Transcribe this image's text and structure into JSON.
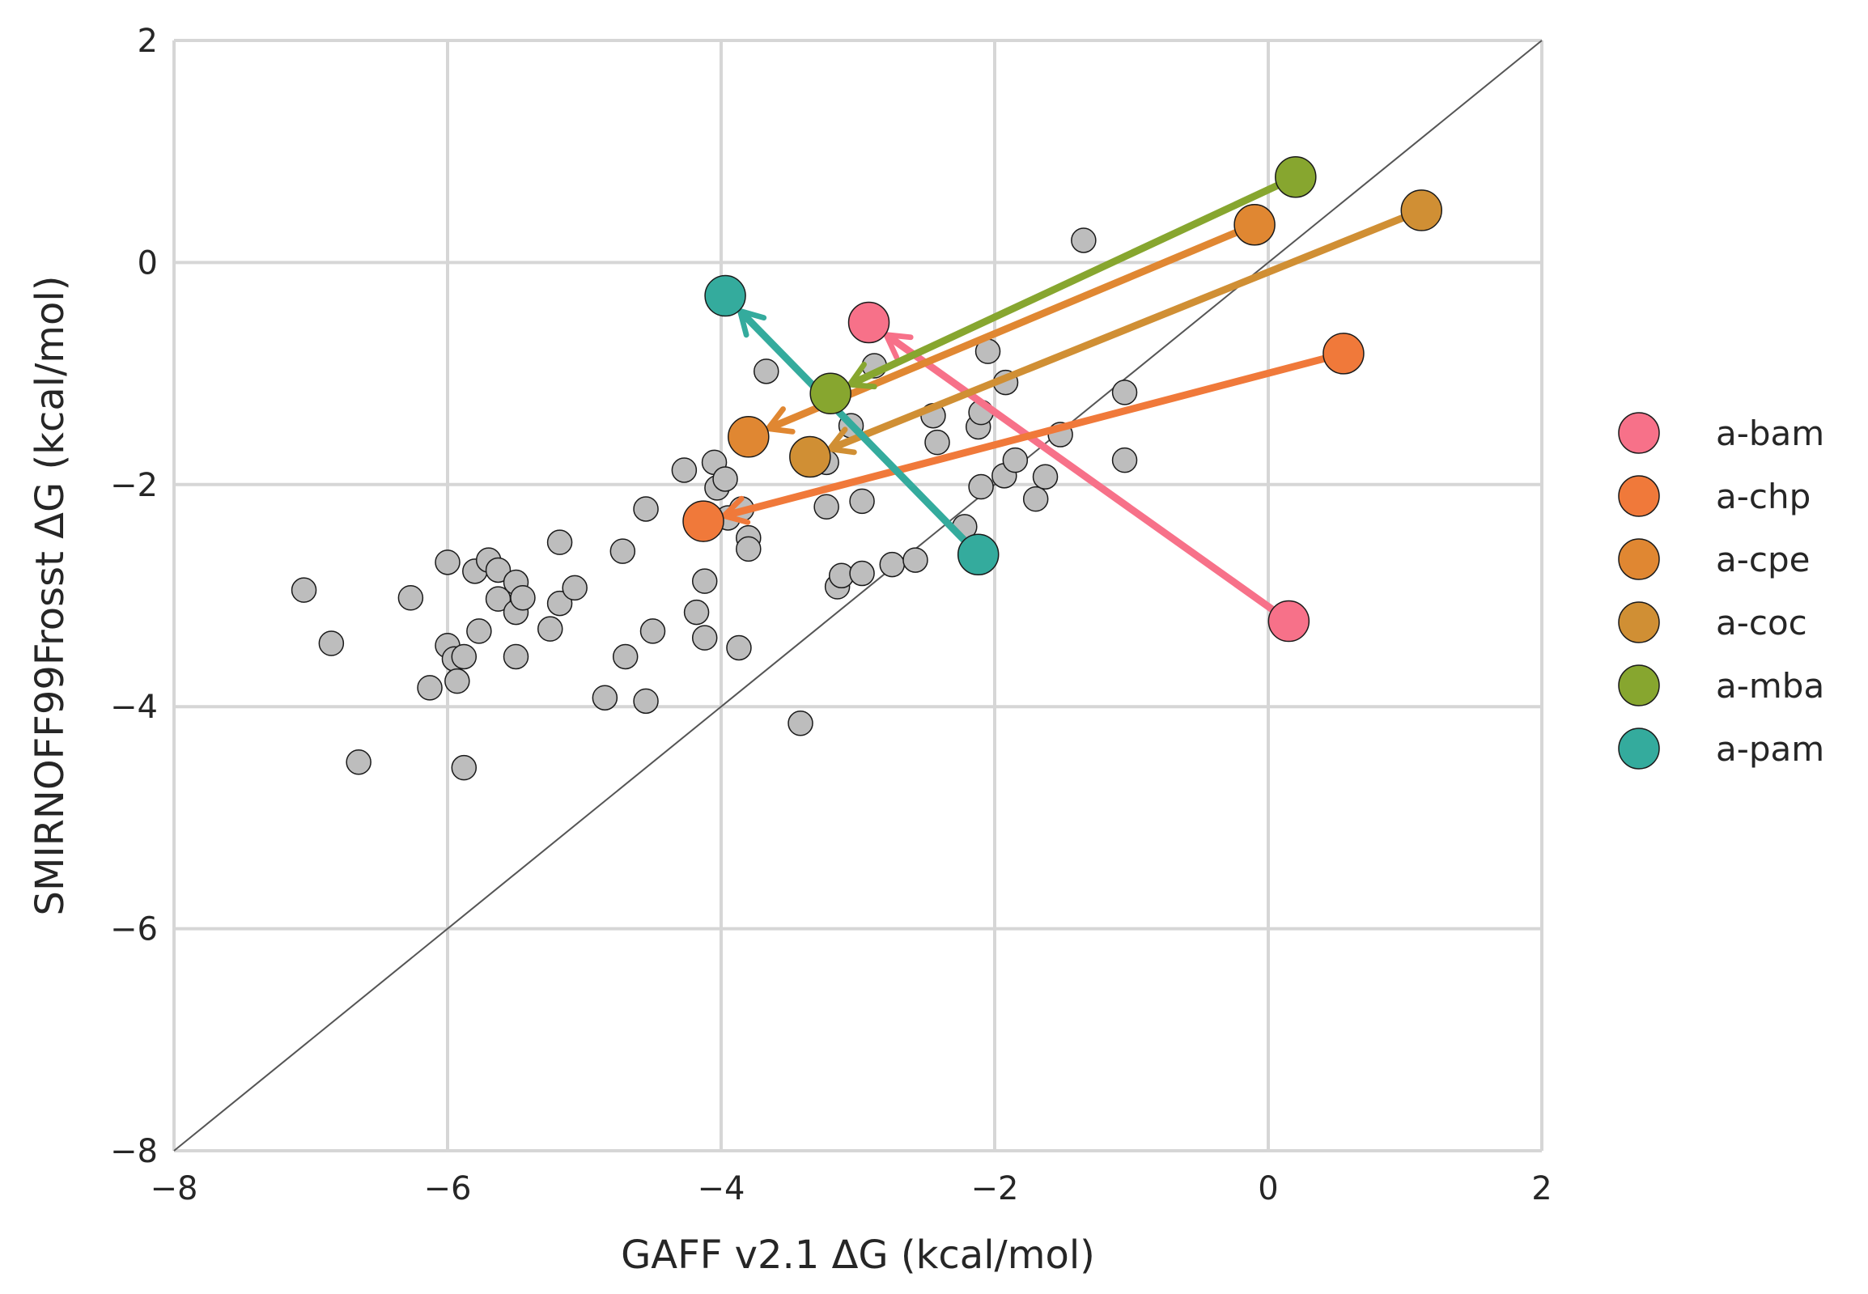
{
  "chart_data": {
    "type": "scatter",
    "title": "",
    "xlabel": "GAFF v2.1 ΔG (kcal/mol)",
    "ylabel": "SMIRNOFF99Frosst ΔG (kcal/mol)",
    "xlim": [
      -8,
      2
    ],
    "ylim": [
      -8,
      2
    ],
    "xticks": [
      -8,
      -6,
      -4,
      -2,
      0,
      2
    ],
    "yticks": [
      -8,
      -6,
      -4,
      -2,
      0,
      2
    ],
    "xtick_labels": [
      "−8",
      "−6",
      "−4",
      "−2",
      "0",
      "2"
    ],
    "ytick_labels": [
      "−8",
      "−6",
      "−4",
      "−2",
      "0",
      "2"
    ],
    "grid": true,
    "identity_line": true,
    "legend_position": "right",
    "background_points": [
      [
        -7.05,
        -2.95
      ],
      [
        -6.85,
        -3.43
      ],
      [
        -6.65,
        -4.5
      ],
      [
        -6.27,
        -3.02
      ],
      [
        -6.13,
        -3.83
      ],
      [
        -6.0,
        -2.7
      ],
      [
        -6.0,
        -3.45
      ],
      [
        -5.95,
        -3.57
      ],
      [
        -5.93,
        -3.77
      ],
      [
        -5.88,
        -3.55
      ],
      [
        -5.88,
        -4.55
      ],
      [
        -5.8,
        -2.78
      ],
      [
        -5.77,
        -3.32
      ],
      [
        -5.7,
        -2.68
      ],
      [
        -5.63,
        -2.77
      ],
      [
        -5.63,
        -3.03
      ],
      [
        -5.5,
        -2.88
      ],
      [
        -5.5,
        -3.15
      ],
      [
        -5.5,
        -3.55
      ],
      [
        -5.45,
        -3.02
      ],
      [
        -5.25,
        -3.3
      ],
      [
        -5.18,
        -2.52
      ],
      [
        -5.18,
        -3.07
      ],
      [
        -5.07,
        -2.93
      ],
      [
        -4.85,
        -3.92
      ],
      [
        -4.72,
        -2.6
      ],
      [
        -4.7,
        -3.55
      ],
      [
        -4.55,
        -2.22
      ],
      [
        -4.55,
        -3.95
      ],
      [
        -4.5,
        -3.32
      ],
      [
        -4.27,
        -1.87
      ],
      [
        -4.18,
        -3.15
      ],
      [
        -4.12,
        -2.87
      ],
      [
        -4.12,
        -3.38
      ],
      [
        -4.05,
        -1.8
      ],
      [
        -4.03,
        -2.03
      ],
      [
        -3.97,
        -1.95
      ],
      [
        -3.95,
        -2.3
      ],
      [
        -3.87,
        -3.47
      ],
      [
        -3.85,
        -2.22
      ],
      [
        -3.8,
        -2.48
      ],
      [
        -3.8,
        -2.58
      ],
      [
        -3.67,
        -0.98
      ],
      [
        -3.42,
        -4.15
      ],
      [
        -3.3,
        -1.72
      ],
      [
        -3.23,
        -1.8
      ],
      [
        -3.23,
        -2.2
      ],
      [
        -3.15,
        -2.92
      ],
      [
        -3.12,
        -2.82
      ],
      [
        -3.05,
        -1.47
      ],
      [
        -2.97,
        -2.15
      ],
      [
        -2.97,
        -2.8
      ],
      [
        -2.88,
        -0.93
      ],
      [
        -2.75,
        -2.72
      ],
      [
        -2.58,
        -2.68
      ],
      [
        -2.45,
        -1.38
      ],
      [
        -2.42,
        -1.62
      ],
      [
        -2.22,
        -2.38
      ],
      [
        -2.12,
        -1.48
      ],
      [
        -2.1,
        -1.35
      ],
      [
        -2.1,
        -2.02
      ],
      [
        -2.05,
        -0.8
      ],
      [
        -1.92,
        -1.08
      ],
      [
        -1.93,
        -1.92
      ],
      [
        -1.85,
        -1.78
      ],
      [
        -1.7,
        -2.13
      ],
      [
        -1.63,
        -1.93
      ],
      [
        -1.52,
        -1.55
      ],
      [
        -1.35,
        0.2
      ],
      [
        -1.05,
        -1.17
      ],
      [
        -1.05,
        -1.78
      ]
    ],
    "series": [
      {
        "name": "a-bam",
        "color": "#f77189",
        "from": [
          0.15,
          -3.23
        ],
        "to": [
          -2.92,
          -0.54
        ]
      },
      {
        "name": "a-chp",
        "color": "#f0793a",
        "from": [
          0.55,
          -0.82
        ],
        "to": [
          -4.13,
          -2.33
        ]
      },
      {
        "name": "a-cpe",
        "color": "#e08732",
        "from": [
          -0.1,
          0.34
        ],
        "to": [
          -3.8,
          -1.57
        ]
      },
      {
        "name": "a-coc",
        "color": "#d08f34",
        "from": [
          1.12,
          0.47
        ],
        "to": [
          -3.35,
          -1.75
        ]
      },
      {
        "name": "a-mba",
        "color": "#87a62f",
        "from": [
          0.2,
          0.77
        ],
        "to": [
          -3.2,
          -1.18
        ]
      },
      {
        "name": "a-pam",
        "color": "#34ab9d",
        "from": [
          -2.12,
          -2.63
        ],
        "to": [
          -3.97,
          -0.3
        ]
      }
    ]
  }
}
